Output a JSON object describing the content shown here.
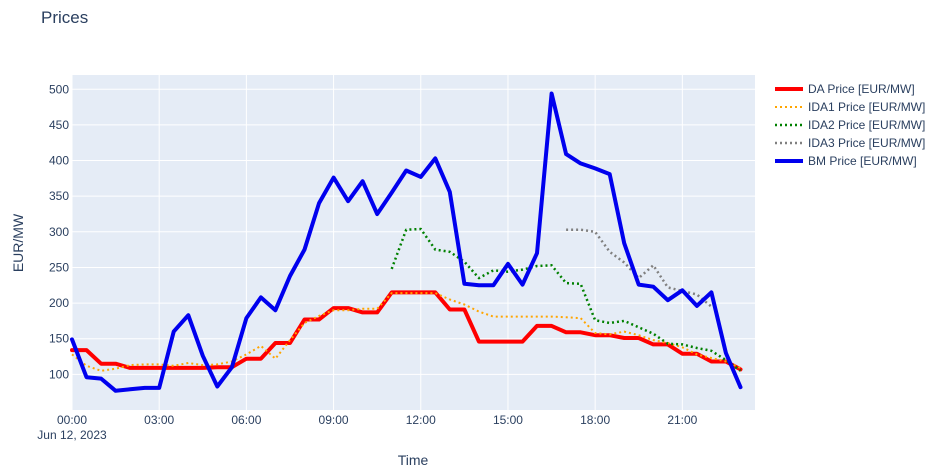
{
  "chart_data": {
    "type": "line",
    "title": "Prices",
    "xlabel": "Time",
    "ylabel": "EUR/MW",
    "x_start_label": "Jun 12, 2023",
    "x_tick_labels": [
      "00:00",
      "03:00",
      "06:00",
      "09:00",
      "12:00",
      "15:00",
      "18:00",
      "21:00"
    ],
    "x_tick_hours": [
      0,
      3,
      6,
      9,
      12,
      15,
      18,
      21
    ],
    "xlim_hours": [
      0,
      23.5
    ],
    "ylim": [
      50,
      520
    ],
    "y_ticks": [
      100,
      150,
      200,
      250,
      300,
      350,
      400,
      450,
      500
    ],
    "grid": true,
    "legend_position": "right",
    "series": [
      {
        "name": "DA Price [EUR/MW]",
        "color": "#ff0000",
        "dash": "solid",
        "width": 4,
        "x": [
          0,
          0.5,
          1,
          1.5,
          2,
          2.5,
          3,
          3.5,
          4,
          4.5,
          5,
          5.5,
          6,
          6.5,
          7,
          7.5,
          8,
          8.5,
          9,
          9.5,
          10,
          10.5,
          11,
          11.5,
          12,
          12.5,
          13,
          13.5,
          14,
          14.5,
          15,
          15.5,
          16,
          16.5,
          17,
          17.5,
          18,
          18.5,
          19,
          19.5,
          20,
          20.5,
          21,
          21.5,
          22,
          22.5,
          23
        ],
        "y": [
          134,
          134,
          115,
          115,
          109,
          109,
          109,
          109,
          109,
          109,
          110,
          110,
          122,
          122,
          144,
          144,
          177,
          177,
          193,
          193,
          187,
          187,
          215,
          215,
          215,
          215,
          191,
          191,
          146,
          146,
          146,
          146,
          168,
          168,
          159,
          159,
          155,
          155,
          151,
          151,
          142,
          142,
          129,
          129,
          118,
          118,
          107
        ]
      },
      {
        "name": "IDA1 Price [EUR/MW]",
        "color": "#ffa500",
        "dash": "dot",
        "width": 2,
        "x": [
          0,
          0.5,
          1,
          1.5,
          2,
          2.5,
          3,
          3.5,
          4,
          4.5,
          5,
          5.5,
          6,
          6.5,
          7,
          7.5,
          8,
          8.5,
          9,
          9.5,
          10,
          10.5,
          11,
          11.5,
          12,
          12.5,
          13,
          13.5,
          14,
          14.5,
          15,
          15.5,
          16,
          16.5,
          17,
          17.5,
          18,
          18.5,
          19,
          19.5,
          20,
          20.5,
          21,
          21.5,
          22,
          22.5,
          23
        ],
        "y": [
          128,
          112,
          105,
          108,
          113,
          114,
          114,
          112,
          116,
          113,
          114,
          118,
          128,
          140,
          122,
          148,
          172,
          182,
          190,
          190,
          192,
          192,
          214,
          214,
          214,
          214,
          205,
          198,
          188,
          181,
          181,
          181,
          181,
          181,
          180,
          179,
          158,
          156,
          160,
          155,
          148,
          144,
          138,
          128,
          123,
          118,
          109
        ]
      },
      {
        "name": "IDA2 Price [EUR/MW]",
        "color": "#008000",
        "dash": "dot",
        "width": 2.5,
        "x": [
          11,
          11.5,
          12,
          12.5,
          13,
          13.5,
          14,
          14.5,
          15,
          15.5,
          16,
          16.5,
          17,
          17.5,
          18,
          18.5,
          19,
          19.5,
          20,
          20.5,
          21,
          21.5,
          22,
          22.5,
          23
        ],
        "y": [
          248,
          303,
          304,
          275,
          272,
          258,
          235,
          246,
          244,
          247,
          252,
          253,
          228,
          227,
          176,
          172,
          175,
          166,
          157,
          143,
          142,
          137,
          133,
          120,
          105
        ]
      },
      {
        "name": "IDA3 Price [EUR/MW]",
        "color": "#808080",
        "dash": "dot",
        "width": 2.5,
        "x": [
          17,
          17.5,
          18,
          18.5,
          19,
          19.5,
          20,
          20.5,
          21,
          21.5,
          22
        ],
        "y": [
          303,
          303,
          300,
          272,
          257,
          235,
          253,
          222,
          217,
          212,
          195
        ]
      },
      {
        "name": "BM Price [EUR/MW]",
        "color": "#0000ee",
        "dash": "solid",
        "width": 4,
        "x": [
          0,
          0.5,
          1,
          1.5,
          2,
          2.5,
          3,
          3.5,
          4,
          4.5,
          5,
          5.5,
          6,
          6.5,
          7,
          7.5,
          8,
          8.5,
          9,
          9.5,
          10,
          10.5,
          11,
          11.5,
          12,
          12.5,
          13,
          13.5,
          14,
          14.5,
          15,
          15.5,
          16,
          16.5,
          17,
          17.5,
          18,
          18.5,
          19,
          19.5,
          20,
          20.5,
          21,
          21.5,
          22,
          22.5,
          23
        ],
        "y": [
          149,
          96,
          94,
          77,
          79,
          81,
          81,
          160,
          183,
          126,
          83,
          110,
          179,
          208,
          190,
          238,
          275,
          340,
          376,
          343,
          371,
          325,
          355,
          386,
          377,
          403,
          356,
          227,
          225,
          225,
          255,
          226,
          270,
          494,
          409,
          396,
          389,
          381,
          284,
          226,
          223,
          204,
          218,
          196,
          215,
          130,
          82
        ]
      }
    ]
  }
}
